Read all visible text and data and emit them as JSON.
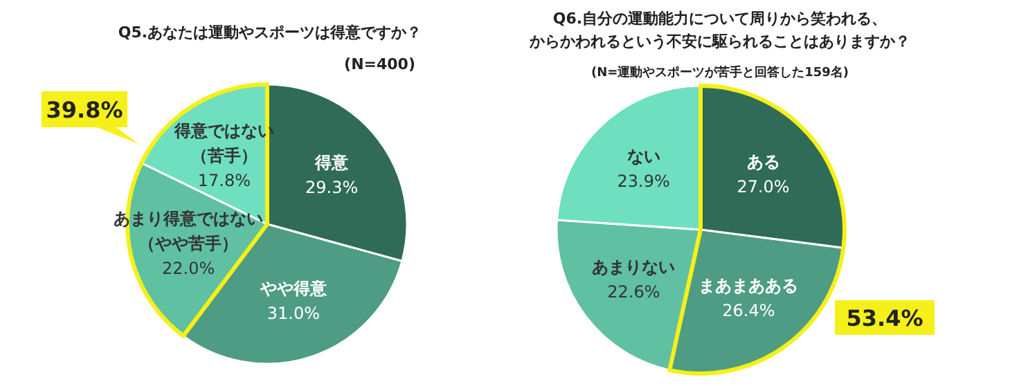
{
  "chart_data": [
    {
      "type": "pie",
      "title": "Q5.あなたは運動やスポーツは得意ですか？",
      "subtitle": "(N=400)",
      "categories": [
        "得意",
        "やや得意",
        "あまり得意ではない（やや苦手）",
        "得意ではない（苦手）"
      ],
      "values": [
        29.3,
        31.0,
        22.0,
        17.8
      ],
      "value_labels": [
        "29.3%",
        "31.0%",
        "22.0%",
        "17.8%"
      ],
      "colors": [
        "#2f6b57",
        "#4e9c83",
        "#5fc1a2",
        "#6ee0c0"
      ],
      "annotations": [
        "39.8%"
      ]
    },
    {
      "type": "pie",
      "title": "Q6.自分の運動能力について周りから笑われる、からかわれるという不安に駆られることはありますか？",
      "subtitle": "(N=運動やスポーツが苦手と回答した159名)",
      "categories": [
        "ある",
        "まあまあある",
        "あまりない",
        "ない"
      ],
      "values": [
        27.0,
        26.4,
        22.6,
        23.9
      ],
      "value_labels": [
        "27.0%",
        "26.4%",
        "22.6%",
        "23.9%"
      ],
      "colors": [
        "#2f6b57",
        "#4e9c83",
        "#5fc1a2",
        "#6ee0c0"
      ],
      "annotations": [
        "53.4%"
      ]
    }
  ]
}
